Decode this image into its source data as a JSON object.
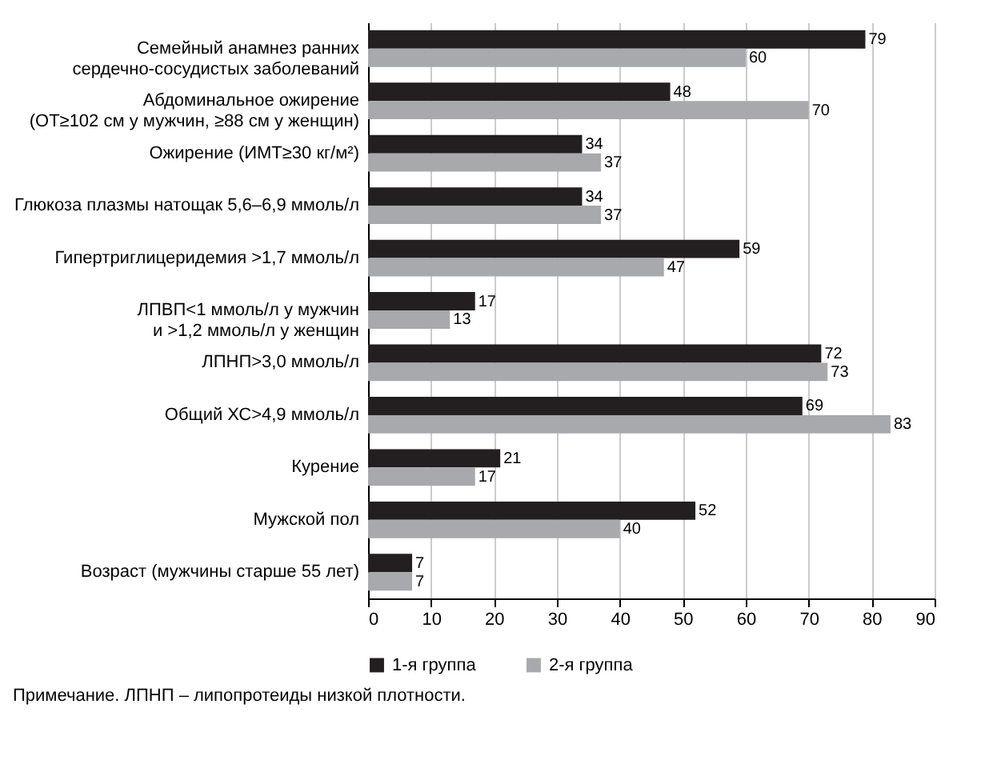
{
  "chart_data": {
    "type": "bar",
    "orientation": "horizontal",
    "categories": [
      "Семейный анамнез ранних\nсердечно-сосудистых заболеваний",
      "Абдоминальное ожирение\n(ОТ≥102 см у мужчин, ≥88 см у женщин)",
      "Ожирение (ИМТ≥30 кг/м²)",
      "Глюкоза плазмы натощак 5,6–6,9 ммоль/л",
      "Гипертриглицеридемия >1,7 ммоль/л",
      "ЛПВП<1 ммоль/л у мужчин\nи >1,2 ммоль/л у женщин",
      "ЛПНП>3,0 ммоль/л",
      "Общий ХС>4,9 ммоль/л",
      "Курение",
      "Мужской пол",
      "Возраст (мужчины старше 55 лет)"
    ],
    "series": [
      {
        "name": "1-я группа",
        "color": "#231f20",
        "values": [
          79,
          48,
          34,
          34,
          59,
          17,
          72,
          69,
          21,
          52,
          7
        ]
      },
      {
        "name": "2-я группа",
        "color": "#a7a9ac",
        "values": [
          60,
          70,
          37,
          37,
          47,
          13,
          73,
          83,
          17,
          40,
          7
        ]
      }
    ],
    "xlim": [
      0,
      90
    ],
    "xticks": [
      0,
      10,
      20,
      30,
      40,
      50,
      60,
      70,
      80,
      90
    ],
    "grid": "x",
    "legend": "bottom",
    "data_labels": true,
    "annotations": [
      "Примечание. ЛПНП – липопротеиды низкой плотности."
    ]
  }
}
